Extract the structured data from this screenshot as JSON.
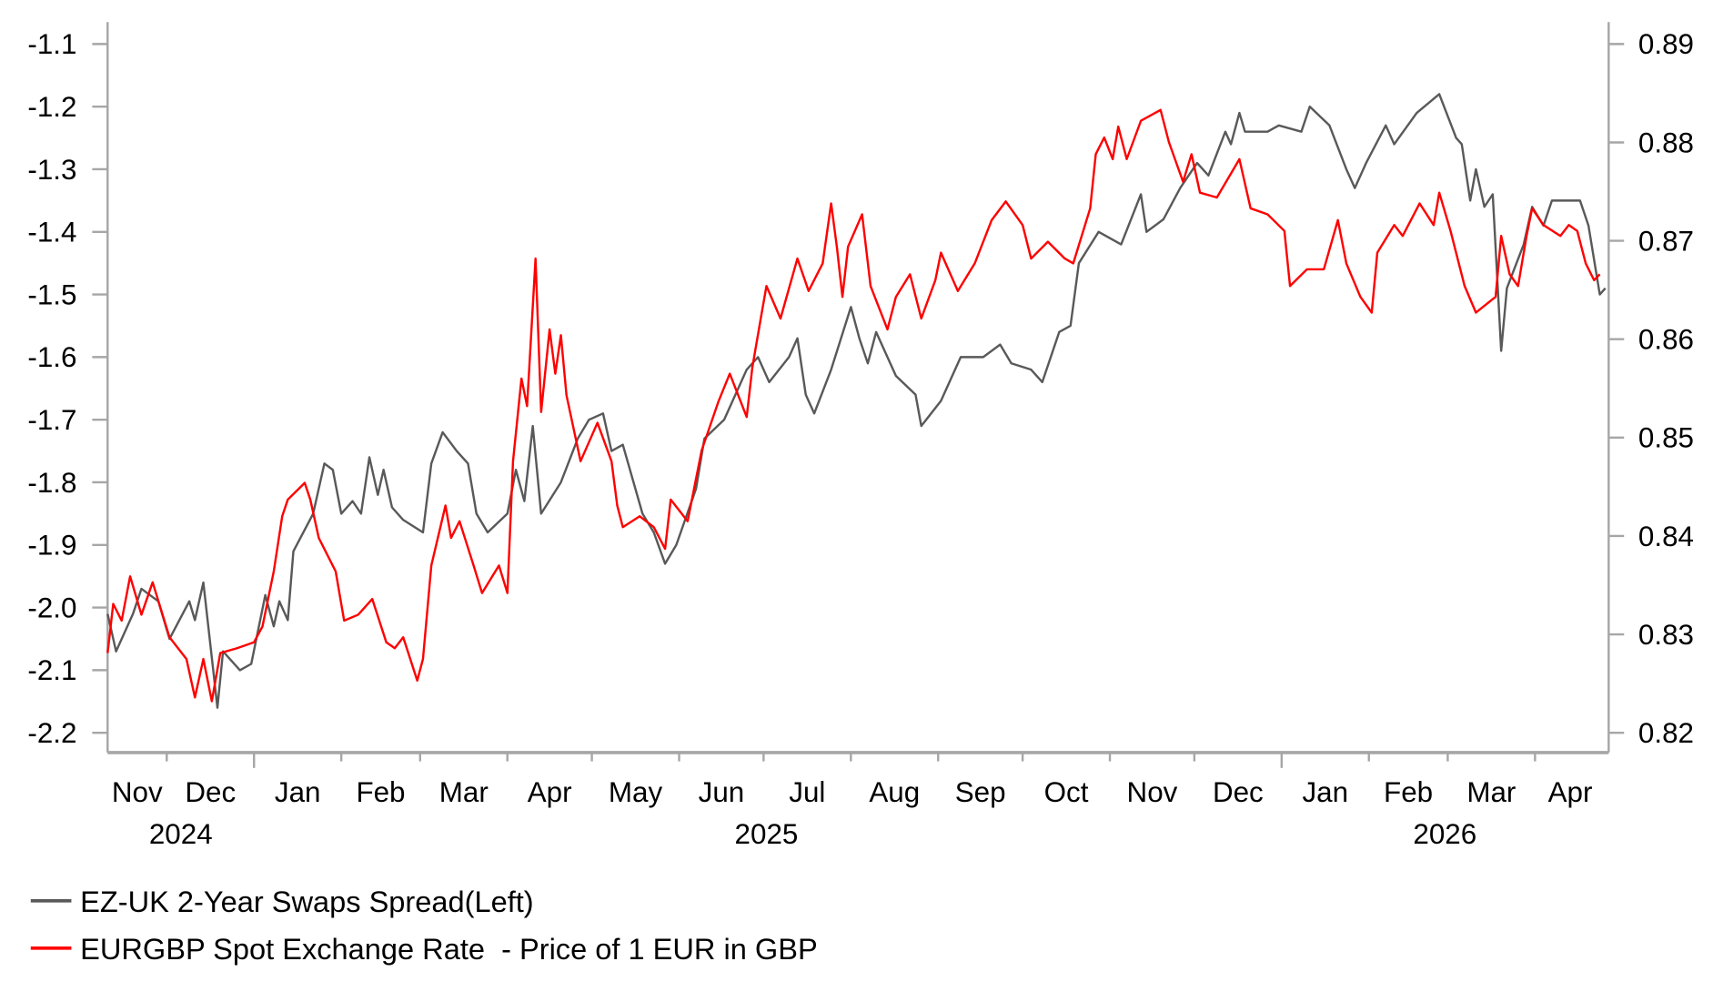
{
  "chart_data": {
    "type": "line",
    "title": "",
    "x_unit": "days since 2024-11-10",
    "x_range": [
      0,
      532
    ],
    "x_month_labels": [
      "Nov",
      "Dec",
      "Jan",
      "Feb",
      "Mar",
      "Apr",
      "May",
      "Jun",
      "Jul",
      "Aug",
      "Sep",
      "Oct",
      "Nov",
      "Dec",
      "Jan",
      "Feb",
      "Mar",
      "Apr"
    ],
    "x_month_boundaries": [
      0,
      21,
      52,
      83,
      111,
      142,
      172,
      203,
      233,
      264,
      295,
      325,
      356,
      386,
      417,
      448,
      476,
      507,
      532
    ],
    "x_major_ticks": [
      52,
      417
    ],
    "x_year_labels": [
      {
        "label": "2024",
        "day": 26
      },
      {
        "label": "2025",
        "day": 234
      },
      {
        "label": "2026",
        "day": 475
      }
    ],
    "y_left": {
      "label": "",
      "range": [
        -2.2,
        -1.1
      ],
      "ticks": [
        "-1.1",
        "-1.2",
        "-1.3",
        "-1.4",
        "-1.5",
        "-1.6",
        "-1.7",
        "-1.8",
        "-1.9",
        "-2.0",
        "-2.1",
        "-2.2"
      ]
    },
    "y_right": {
      "label": "",
      "range": [
        0.82,
        0.89
      ],
      "ticks": [
        "0.89",
        "0.88",
        "0.87",
        "0.86",
        "0.85",
        "0.84",
        "0.83",
        "0.82"
      ]
    },
    "grid": false,
    "legend_position": "bottom-left",
    "series": [
      {
        "name": "EZ-UK 2-Year Swaps Spread(Left)",
        "axis": "left",
        "color": "#595959",
        "x": [
          0,
          3,
          9,
          12,
          18,
          22,
          29,
          31,
          34,
          37,
          39,
          41,
          47,
          51,
          56,
          59,
          61,
          64,
          66,
          73,
          77,
          80,
          83,
          87,
          90,
          93,
          96,
          98,
          101,
          105,
          112,
          115,
          119,
          124,
          128,
          131,
          135,
          142,
          145,
          148,
          151,
          154,
          161,
          167,
          171,
          176,
          179,
          183,
          190,
          194,
          198,
          202,
          209,
          212,
          219,
          227,
          231,
          235,
          242,
          245,
          248,
          251,
          257,
          264,
          267,
          270,
          273,
          280,
          287,
          289,
          296,
          303,
          311,
          317,
          321,
          328,
          332,
          338,
          342,
          345,
          352,
          360,
          367,
          369,
          375,
          381,
          387,
          391,
          397,
          399,
          402,
          404,
          412,
          416,
          424,
          427,
          434,
          440,
          443,
          447,
          454,
          457,
          465,
          473,
          479,
          481,
          484,
          486,
          489,
          492,
          495,
          497,
          503,
          506,
          510,
          513,
          519,
          523,
          526,
          530,
          532
        ],
        "y": [
          -2.01,
          -2.07,
          -2.01,
          -1.97,
          -1.99,
          -2.05,
          -1.99,
          -2.02,
          -1.96,
          -2.08,
          -2.16,
          -2.07,
          -2.1,
          -2.09,
          -1.98,
          -2.03,
          -1.99,
          -2.02,
          -1.91,
          -1.85,
          -1.77,
          -1.78,
          -1.85,
          -1.83,
          -1.85,
          -1.76,
          -1.82,
          -1.78,
          -1.84,
          -1.86,
          -1.88,
          -1.77,
          -1.72,
          -1.75,
          -1.77,
          -1.85,
          -1.88,
          -1.85,
          -1.78,
          -1.83,
          -1.71,
          -1.85,
          -1.8,
          -1.73,
          -1.7,
          -1.69,
          -1.75,
          -1.74,
          -1.85,
          -1.88,
          -1.93,
          -1.9,
          -1.81,
          -1.73,
          -1.7,
          -1.62,
          -1.6,
          -1.64,
          -1.6,
          -1.57,
          -1.66,
          -1.69,
          -1.62,
          -1.52,
          -1.57,
          -1.61,
          -1.56,
          -1.63,
          -1.66,
          -1.71,
          -1.67,
          -1.6,
          -1.6,
          -1.58,
          -1.61,
          -1.62,
          -1.64,
          -1.56,
          -1.55,
          -1.45,
          -1.4,
          -1.42,
          -1.34,
          -1.4,
          -1.38,
          -1.33,
          -1.29,
          -1.31,
          -1.24,
          -1.26,
          -1.21,
          -1.24,
          -1.24,
          -1.23,
          -1.24,
          -1.2,
          -1.23,
          -1.3,
          -1.33,
          -1.29,
          -1.23,
          -1.26,
          -1.21,
          -1.18,
          -1.25,
          -1.26,
          -1.35,
          -1.3,
          -1.36,
          -1.34,
          -1.59,
          -1.49,
          -1.42,
          -1.36,
          -1.39,
          -1.35,
          -1.35,
          -1.35,
          -1.39,
          -1.5,
          -1.49
        ]
      },
      {
        "name": "EURGBP Spot Exchange Rate  - Price of 1 EUR in GBP",
        "axis": "right",
        "color": "#ff0000",
        "x": [
          0,
          2,
          5,
          8,
          12,
          16,
          22,
          28,
          31,
          34,
          37,
          40,
          46,
          52,
          55,
          59,
          62,
          64,
          70,
          72,
          75,
          81,
          84,
          89,
          94,
          99,
          102,
          105,
          110,
          112,
          115,
          120,
          122,
          125,
          130,
          133,
          139,
          142,
          144,
          147,
          149,
          152,
          154,
          157,
          159,
          161,
          163,
          168,
          174,
          179,
          181,
          183,
          189,
          194,
          198,
          200,
          206,
          211,
          217,
          221,
          227,
          229,
          232,
          234,
          239,
          245,
          249,
          254,
          257,
          259,
          261,
          263,
          268,
          271,
          277,
          280,
          285,
          289,
          294,
          296,
          302,
          308,
          314,
          319,
          325,
          328,
          334,
          340,
          343,
          349,
          351,
          354,
          357,
          359,
          362,
          367,
          374,
          377,
          382,
          385,
          388,
          394,
          402,
          406,
          412,
          418,
          420,
          426,
          432,
          437,
          440,
          445,
          449,
          451,
          457,
          460,
          466,
          471,
          473,
          477,
          482,
          486,
          493,
          495,
          498,
          501,
          504,
          506,
          510,
          516,
          519,
          522,
          525,
          528,
          530
        ],
        "y": [
          0.8281,
          0.8331,
          0.8314,
          0.8359,
          0.832,
          0.8353,
          0.8297,
          0.8275,
          0.8236,
          0.8275,
          0.8232,
          0.8281,
          0.8286,
          0.8292,
          0.8308,
          0.8364,
          0.842,
          0.8437,
          0.8454,
          0.8437,
          0.8398,
          0.8364,
          0.8314,
          0.832,
          0.8336,
          0.8292,
          0.8286,
          0.8297,
          0.8253,
          0.8275,
          0.837,
          0.8431,
          0.8398,
          0.8415,
          0.837,
          0.8342,
          0.837,
          0.8342,
          0.8476,
          0.856,
          0.8532,
          0.8682,
          0.8526,
          0.861,
          0.8565,
          0.8604,
          0.8543,
          0.8476,
          0.8515,
          0.8476,
          0.8431,
          0.8409,
          0.842,
          0.8409,
          0.8387,
          0.8437,
          0.8415,
          0.8487,
          0.8537,
          0.8565,
          0.8521,
          0.8571,
          0.8621,
          0.8654,
          0.8621,
          0.8682,
          0.8649,
          0.8677,
          0.8738,
          0.8694,
          0.8643,
          0.8694,
          0.8727,
          0.8654,
          0.861,
          0.8643,
          0.8666,
          0.8621,
          0.866,
          0.8688,
          0.8649,
          0.8677,
          0.8721,
          0.874,
          0.8716,
          0.8682,
          0.8699,
          0.8682,
          0.8677,
          0.8733,
          0.8788,
          0.8805,
          0.8783,
          0.8816,
          0.8783,
          0.8822,
          0.8833,
          0.88,
          0.876,
          0.8788,
          0.8749,
          0.8744,
          0.8783,
          0.8733,
          0.8727,
          0.871,
          0.8654,
          0.8671,
          0.8671,
          0.8721,
          0.8677,
          0.8643,
          0.8627,
          0.8688,
          0.8716,
          0.8705,
          0.8738,
          0.8716,
          0.8749,
          0.871,
          0.8654,
          0.8627,
          0.8643,
          0.8705,
          0.8666,
          0.8654,
          0.8705,
          0.8733,
          0.8716,
          0.8705,
          0.8716,
          0.871,
          0.8677,
          0.866,
          0.8666
        ]
      }
    ]
  }
}
